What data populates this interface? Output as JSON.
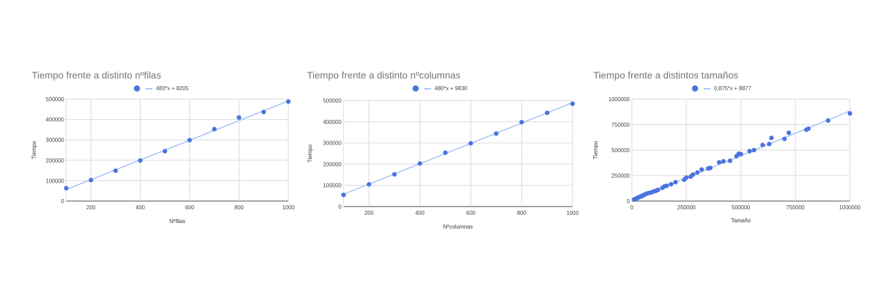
{
  "colors": {
    "point": "#4a74e0",
    "trend": "#a9c4f5",
    "grid": "#d9d9d9",
    "axis": "#444444"
  },
  "chart_data": [
    {
      "type": "scatter",
      "title": "Tiempo frente a distinto nºfilas",
      "xlabel": "Nºfilas",
      "ylabel": "Tiempo",
      "xlim": [
        100,
        1000
      ],
      "ylim": [
        0,
        500000
      ],
      "xticks": [
        "200",
        "400",
        "600",
        "800",
        "1000"
      ],
      "xtick_values": [
        200,
        400,
        600,
        800,
        1000
      ],
      "yticks": [
        "0",
        "100000",
        "200000",
        "300000",
        "400000",
        "500000"
      ],
      "ytick_values": [
        0,
        100000,
        200000,
        300000,
        400000,
        500000
      ],
      "legend": "483*x + 8205",
      "legend_position": "top",
      "grid": true,
      "trendline": {
        "slope": 483,
        "intercept": 8205
      },
      "x": [
        100,
        200,
        300,
        400,
        500,
        600,
        700,
        800,
        900,
        1000
      ],
      "y": [
        63000,
        103000,
        149000,
        199000,
        245000,
        299000,
        353000,
        410000,
        437000,
        488000
      ]
    },
    {
      "type": "scatter",
      "title": "Tiempo frente a distinto nºcolumnas",
      "xlabel": "Nºcolumnas",
      "ylabel": "Tiempo",
      "xlim": [
        100,
        1000
      ],
      "ylim": [
        0,
        500000
      ],
      "xticks": [
        "200",
        "400",
        "600",
        "800",
        "1000"
      ],
      "xtick_values": [
        200,
        400,
        600,
        800,
        1000
      ],
      "yticks": [
        "0",
        "100000",
        "200000",
        "300000",
        "400000",
        "500000"
      ],
      "ytick_values": [
        0,
        100000,
        200000,
        300000,
        400000,
        500000
      ],
      "legend": "480*x + 9830",
      "legend_position": "top",
      "grid": true,
      "trendline": {
        "slope": 480,
        "intercept": 9830
      },
      "x": [
        100,
        200,
        300,
        400,
        500,
        600,
        700,
        800,
        900,
        1000
      ],
      "y": [
        55000,
        105000,
        152000,
        203000,
        254000,
        298000,
        344000,
        398000,
        442000,
        485000
      ]
    },
    {
      "type": "scatter",
      "title": "Tiempo frente a distintos tamaños",
      "xlabel": "Tamaño",
      "ylabel": "Tiempo",
      "xlim": [
        0,
        1000000
      ],
      "ylim": [
        0,
        1000000
      ],
      "xticks": [
        "0",
        "250000",
        "500000",
        "750000",
        "1000000"
      ],
      "xtick_values": [
        0,
        250000,
        500000,
        750000,
        1000000
      ],
      "yticks": [
        "0",
        "250000",
        "500000",
        "750000",
        "1000000"
      ],
      "ytick_values": [
        0,
        250000,
        500000,
        750000,
        1000000
      ],
      "legend": "0,875*x + 8877",
      "legend_position": "top",
      "grid": true,
      "trendline": {
        "slope": 0.875,
        "intercept": 8877
      },
      "x": [
        10000,
        15000,
        20000,
        25000,
        30000,
        35000,
        40000,
        45000,
        50000,
        55000,
        60000,
        70000,
        80000,
        90000,
        100000,
        110000,
        120000,
        140000,
        150000,
        160000,
        180000,
        200000,
        240000,
        250000,
        270000,
        280000,
        300000,
        320000,
        350000,
        360000,
        400000,
        420000,
        450000,
        480000,
        490000,
        500000,
        540000,
        560000,
        600000,
        630000,
        640000,
        700000,
        720000,
        800000,
        810000,
        900000,
        1000000
      ],
      "y": [
        15000,
        20000,
        25000,
        30000,
        35000,
        40000,
        45000,
        48000,
        55000,
        60000,
        65000,
        75000,
        80000,
        85000,
        95000,
        100000,
        110000,
        130000,
        145000,
        150000,
        165000,
        185000,
        210000,
        230000,
        240000,
        260000,
        280000,
        310000,
        320000,
        325000,
        380000,
        390000,
        395000,
        440000,
        465000,
        460000,
        490000,
        500000,
        550000,
        560000,
        620000,
        610000,
        670000,
        700000,
        710000,
        790000,
        860000
      ]
    }
  ]
}
